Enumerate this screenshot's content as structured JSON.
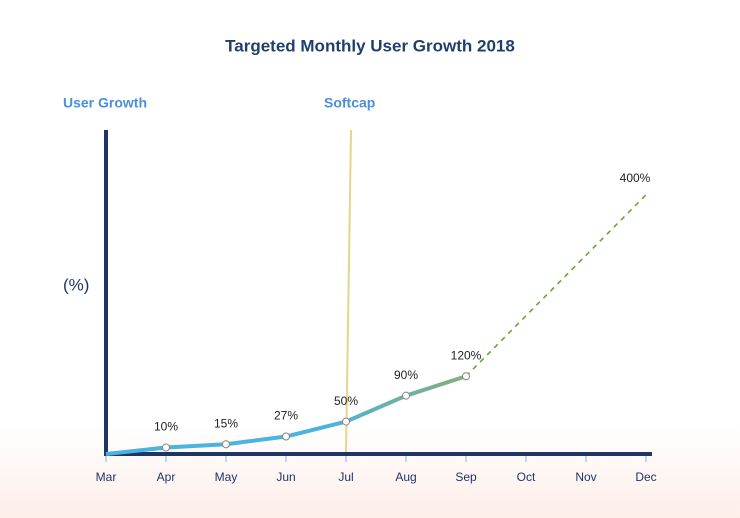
{
  "chart_data": {
    "type": "line",
    "title": "Targeted Monthly User Growth 2018",
    "y_label": "User Growth",
    "y_unit": "(%)",
    "categories": [
      "Mar",
      "Apr",
      "May",
      "Jun",
      "Jul",
      "Aug",
      "Sep",
      "Oct",
      "Nov",
      "Dec"
    ],
    "series": [
      {
        "name": "User Growth",
        "color": "#4ab3e0",
        "values": [
          0,
          10,
          15,
          27,
          50,
          90,
          120,
          null,
          null,
          null
        ],
        "value_labels": [
          null,
          "10%",
          "15%",
          "27%",
          "50%",
          "90%",
          "120%",
          null,
          null,
          null
        ]
      }
    ],
    "target": {
      "category": "Dec",
      "value": 400,
      "label": "400%",
      "color": "#6aa531"
    },
    "annotations": [
      {
        "text": "Softcap",
        "x": "Jul",
        "color": "#e3d58a"
      }
    ],
    "ylim": [
      0,
      500
    ],
    "axis_color": "#1f3564"
  }
}
